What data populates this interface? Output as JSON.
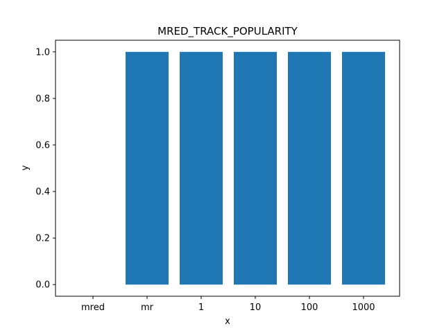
{
  "chart_data": {
    "type": "bar",
    "title": "MRED_TRACK_POPULARITY",
    "xlabel": "x",
    "ylabel": "y",
    "categories": [
      "mred",
      "mr",
      "1",
      "10",
      "100",
      "1000"
    ],
    "values": [
      0.0,
      1.0,
      1.0,
      1.0,
      1.0,
      1.0
    ],
    "ylim": [
      -0.05,
      1.05
    ],
    "yticks": [
      0.0,
      0.2,
      0.4,
      0.6,
      0.8,
      1.0
    ],
    "ytick_labels": [
      "0.0",
      "0.2",
      "0.4",
      "0.6",
      "0.8",
      "1.0"
    ],
    "grid": false,
    "bar_color": "#1f77b4"
  }
}
